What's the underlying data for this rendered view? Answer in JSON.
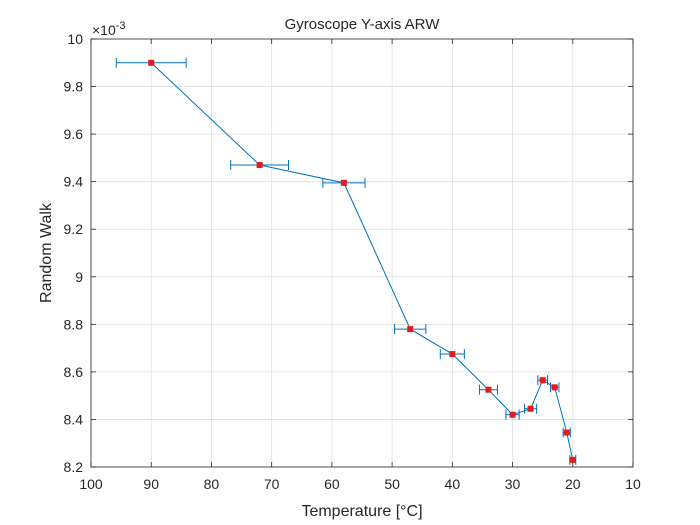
{
  "chart_data": {
    "type": "scatter",
    "title": "Gyroscope Y-axis ARW",
    "xlabel": "Temperature [°C]",
    "ylabel": "Random Walk",
    "exponent_label_base": "×10",
    "exponent_label_power": "-3",
    "x_direction": "reversed",
    "xlim": [
      10,
      100
    ],
    "ylim": [
      8.2,
      10
    ],
    "xticks": [
      "100",
      "90",
      "80",
      "70",
      "60",
      "50",
      "40",
      "30",
      "20",
      "10"
    ],
    "yticks": [
      "10",
      "9.8",
      "9.6",
      "9.4",
      "9.2",
      "9",
      "8.8",
      "8.6",
      "8.4",
      "8.2"
    ],
    "grid": true,
    "series": [
      {
        "line_color": "#0072bd",
        "marker_color": "#e41a1c",
        "x": [
          90,
          72,
          58,
          47,
          40,
          34,
          30,
          27,
          25,
          23,
          21,
          20
        ],
        "y": [
          9.9,
          9.47,
          9.395,
          8.78,
          8.675,
          8.525,
          8.42,
          8.445,
          8.565,
          8.535,
          8.345,
          8.23
        ],
        "x_error": [
          5.8,
          4.8,
          3.5,
          2.6,
          2.0,
          1.5,
          1.1,
          1.0,
          0.8,
          0.7,
          0.6,
          0.5
        ]
      }
    ]
  }
}
